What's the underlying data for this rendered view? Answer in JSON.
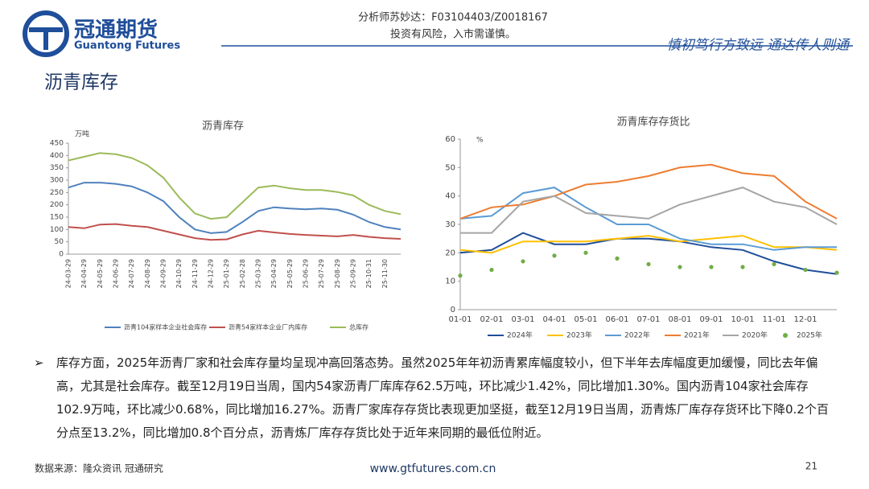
{
  "header": {
    "logo": "冠通期货",
    "logo_en": "Guantong Futures",
    "analyst": "分析师苏妙达：F03104403/Z0018167",
    "risk": "投资有风险，入市需谨慎。",
    "slogan": "慎初笃行方致远 通达传人则通"
  },
  "title": "沥青库存",
  "chart_data": [
    {
      "type": "line",
      "title": "沥青库存",
      "y_label": "万吨",
      "categories": [
        "24-03-29",
        "24-04-29",
        "24-05-29",
        "24-06-29",
        "24-07-29",
        "24-08-29",
        "24-09-29",
        "24-10-29",
        "24-11-29",
        "24-12-29",
        "25-01-29",
        "25-02-28",
        "25-03-29",
        "25-04-29",
        "25-05-29",
        "25-06-29",
        "25-07-29",
        "25-08-29",
        "25-09-29",
        "25-10-31",
        "25-11-30",
        null
      ],
      "ylim": [
        0,
        450
      ],
      "yticks": [
        0,
        50,
        100,
        150,
        200,
        250,
        300,
        350,
        400,
        450
      ],
      "series": [
        {
          "name": "沥青104家样本企业社会库存",
          "color": "#4f81bd",
          "values": [
            270,
            290,
            290,
            285,
            275,
            250,
            215,
            150,
            100,
            85,
            90,
            130,
            175,
            190,
            185,
            182,
            185,
            180,
            160,
            130,
            110,
            100
          ]
        },
        {
          "name": "沥青54家样本企业厂内库存",
          "color": "#c0504d",
          "values": [
            110,
            105,
            120,
            122,
            115,
            110,
            95,
            80,
            65,
            58,
            60,
            80,
            95,
            88,
            82,
            78,
            75,
            72,
            78,
            70,
            65,
            62
          ]
        },
        {
          "name": "总库存",
          "color": "#9bbb59",
          "values": [
            380,
            395,
            410,
            405,
            390,
            360,
            310,
            230,
            165,
            143,
            150,
            210,
            270,
            278,
            267,
            260,
            260,
            252,
            238,
            200,
            175,
            162
          ]
        }
      ]
    },
    {
      "type": "line",
      "title": "沥青库存存货比",
      "y_label": "%",
      "categories": [
        "01-01",
        "02-01",
        "03-01",
        "04-01",
        "05-01",
        "06-01",
        "07-01",
        "08-01",
        "09-01",
        "10-01",
        "11-01",
        "12-01",
        null
      ],
      "ylim": [
        0,
        60
      ],
      "yticks": [
        0,
        10,
        20,
        30,
        40,
        50,
        60
      ],
      "series": [
        {
          "name": "2024年",
          "color": "#1f4e9a",
          "values": [
            20,
            21,
            27,
            23,
            23,
            25,
            25,
            24,
            22,
            21,
            17,
            14,
            12.5
          ]
        },
        {
          "name": "2023年",
          "color": "#ffc000",
          "values": [
            21,
            20,
            24,
            24,
            24,
            25,
            26,
            24,
            25,
            26,
            22,
            22,
            21
          ]
        },
        {
          "name": "2022年",
          "color": "#5b9bd5",
          "values": [
            32,
            33,
            41,
            43,
            36,
            30,
            30,
            25,
            23,
            23,
            21,
            22,
            22
          ]
        },
        {
          "name": "2021年",
          "color": "#ed7d31",
          "values": [
            32,
            36,
            37,
            40,
            44,
            45,
            47,
            50,
            51,
            48,
            47,
            38,
            32
          ]
        },
        {
          "name": "2020年",
          "color": "#a5a5a5",
          "values": [
            27,
            27,
            38,
            40,
            34,
            33,
            32,
            37,
            40,
            43,
            38,
            36,
            30
          ]
        },
        {
          "name": "2025年",
          "color": "#70ad47",
          "style": "dots",
          "values": [
            12,
            14,
            17,
            19,
            20,
            18,
            16,
            15,
            15,
            15,
            16,
            14,
            13
          ]
        }
      ]
    }
  ],
  "body": "库存方面，2025年沥青厂家和社会库存量均呈现冲高回落态势。虽然2025年年初沥青累库幅度较小，但下半年去库幅度更加缓慢，同比去年偏高，尤其是社会库存。截至12月19日当周，国内54家沥青厂库库存62.5万吨，环比减少1.42%，同比增加1.30%。国内沥青104家社会库存102.9万吨，环比减少0.68%，同比增加16.27%。沥青厂家库存存货比表现更加坚挺，截至12月19日当周，沥青炼厂库存存货环比下降0.2个百分点至13.2%，同比增加0.8个百分点，沥青炼厂库存存货比处于近年来同期的最低位附近。",
  "footer": {
    "source": "数据来源：隆众资讯 冠通研究",
    "url": "www.gtfutures.com.cn",
    "page": "21"
  }
}
